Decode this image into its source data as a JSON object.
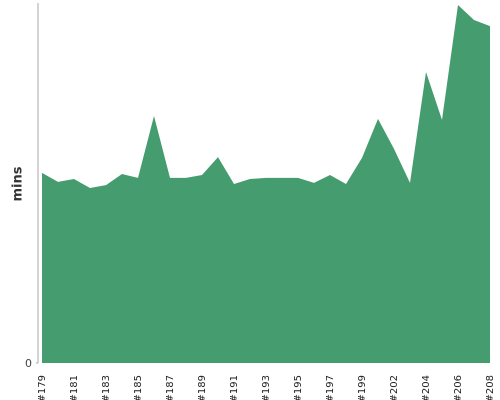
{
  "chart_data": {
    "type": "area",
    "y_label": "mins",
    "color": "#459c6e",
    "categories": [
      "#179",
      null,
      "#181",
      null,
      "#183",
      null,
      "#185",
      null,
      "#187",
      null,
      "#189",
      null,
      "#191",
      null,
      "#193",
      null,
      "#195",
      null,
      "#197",
      null,
      "#199",
      null,
      "#202",
      null,
      "#204",
      null,
      "#206",
      null,
      "#208"
    ],
    "values": [
      5.31,
      5.06,
      5.14,
      4.89,
      4.97,
      5.28,
      5.17,
      6.9,
      5.17,
      5.17,
      5.25,
      5.75,
      5.0,
      5.14,
      5.17,
      5.17,
      5.17,
      5.03,
      5.25,
      5.0,
      5.73,
      6.82,
      5.98,
      5.03,
      8.13,
      6.79,
      10.0,
      9.58,
      9.41
    ],
    "ylim": [
      0,
      10
    ],
    "yticks": [
      0
    ]
  }
}
